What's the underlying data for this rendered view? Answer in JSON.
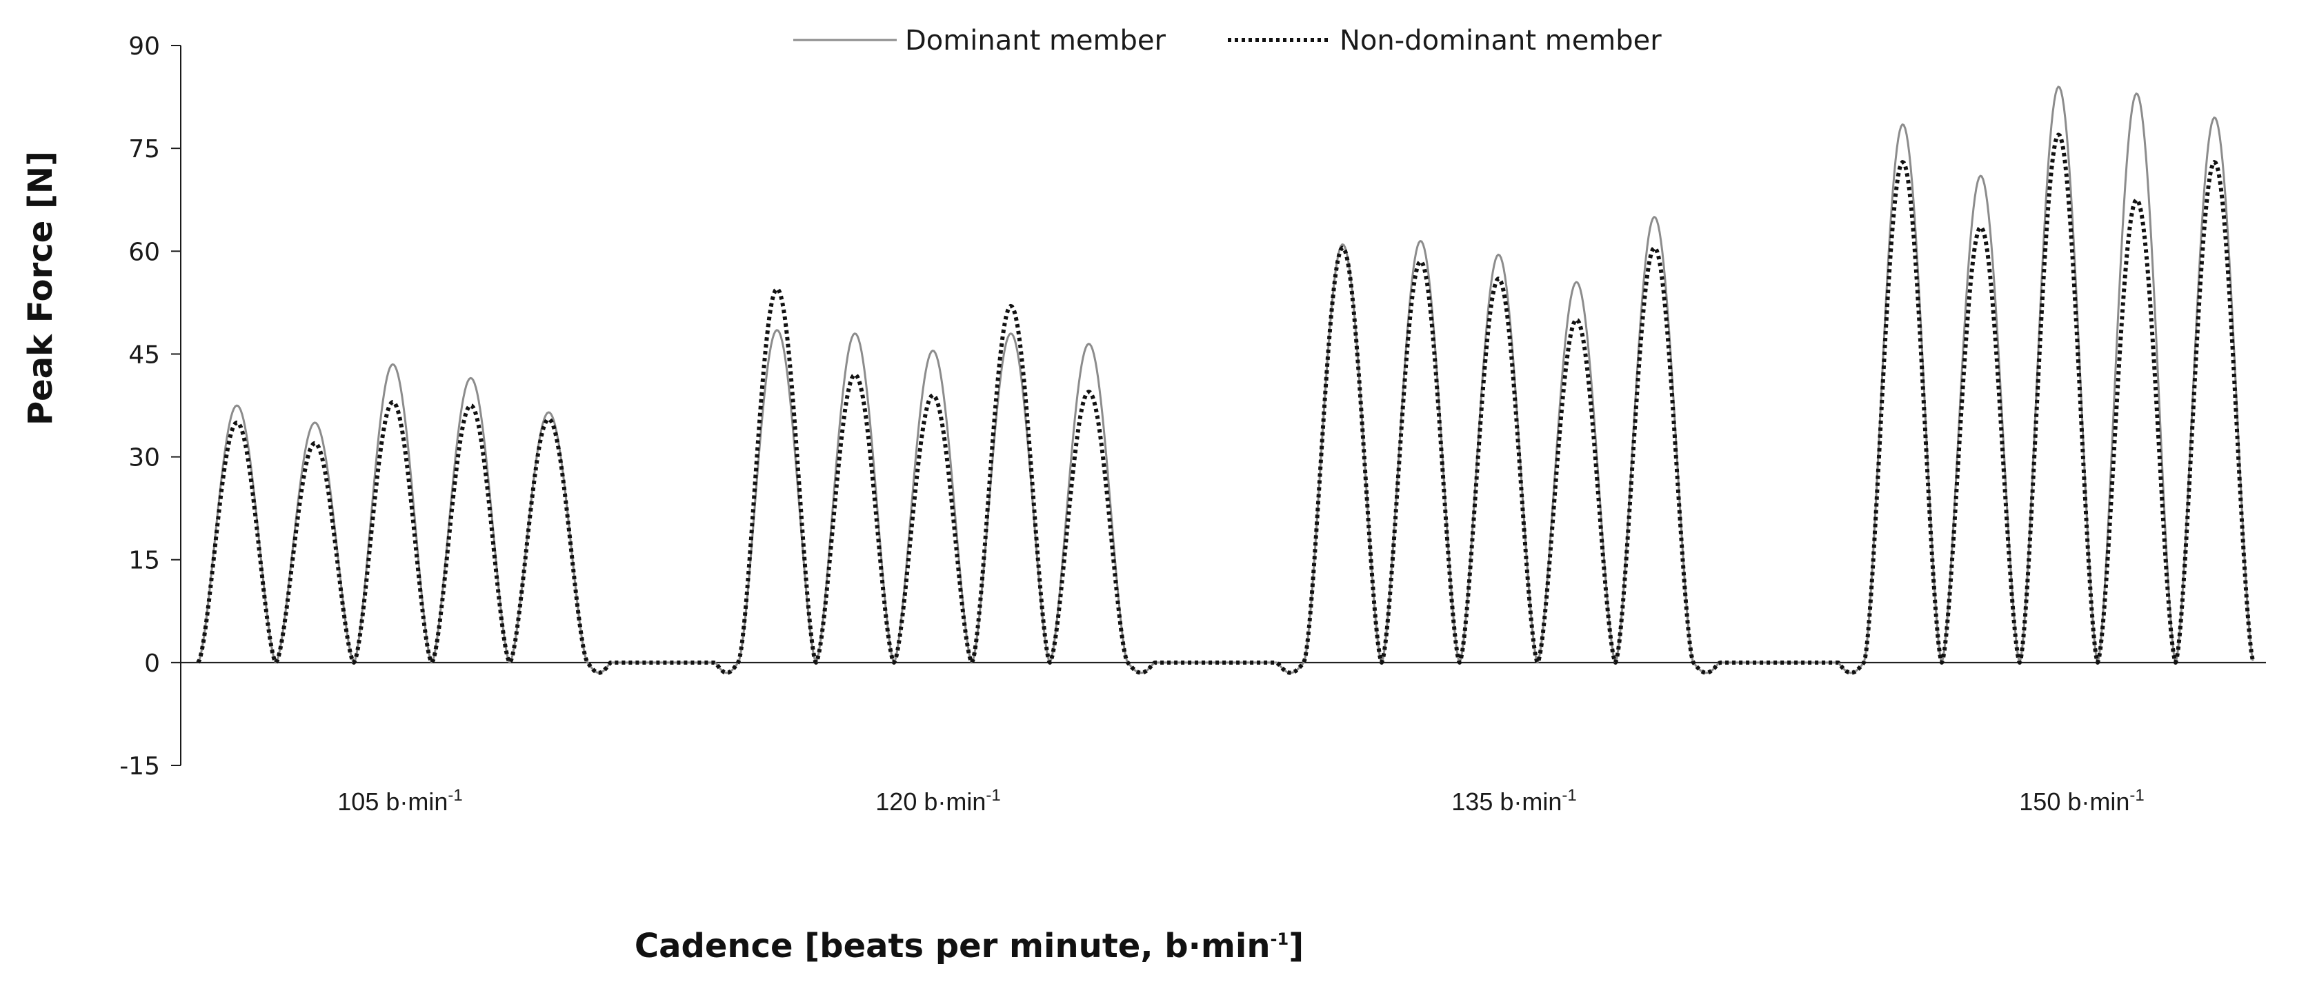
{
  "chart_data": {
    "type": "line",
    "xlabel": "Cadence [beats per minute, b·min",
    "xlabel_sup": "-1",
    "xlabel_end": "]",
    "ylabel": "Peak Force [N]",
    "ylim": [
      -15,
      90
    ],
    "yticks": [
      "90",
      "75",
      "60",
      "45",
      "30",
      "15",
      "0",
      "-15"
    ],
    "grid": false,
    "legend_position": "top-center",
    "groups": [
      {
        "label": "105 b·min",
        "sup": "-1"
      },
      {
        "label": "120 b·min",
        "sup": "-1"
      },
      {
        "label": "135 b·min",
        "sup": "-1"
      },
      {
        "label": "150 b·min",
        "sup": "-1"
      }
    ],
    "series": [
      {
        "name": "Dominant member",
        "color": "#8c8c8c",
        "style": "solid",
        "peaks": [
          [
            37.5,
            35,
            43.5,
            41.5,
            36.5
          ],
          [
            48.5,
            48,
            45.5,
            48,
            46.5
          ],
          [
            61,
            61.5,
            59.5,
            55.5,
            65
          ],
          [
            78.5,
            71,
            84,
            83,
            79.5
          ]
        ]
      },
      {
        "name": "Non-dominant member",
        "color": "#111111",
        "style": "dotted",
        "peaks": [
          [
            35,
            32,
            38,
            37.5,
            35.5
          ],
          [
            54.5,
            42,
            39,
            52,
            39.5
          ],
          [
            60.5,
            58.5,
            56,
            50,
            60.5
          ],
          [
            73,
            63.5,
            77,
            67.5,
            73
          ]
        ]
      }
    ]
  }
}
